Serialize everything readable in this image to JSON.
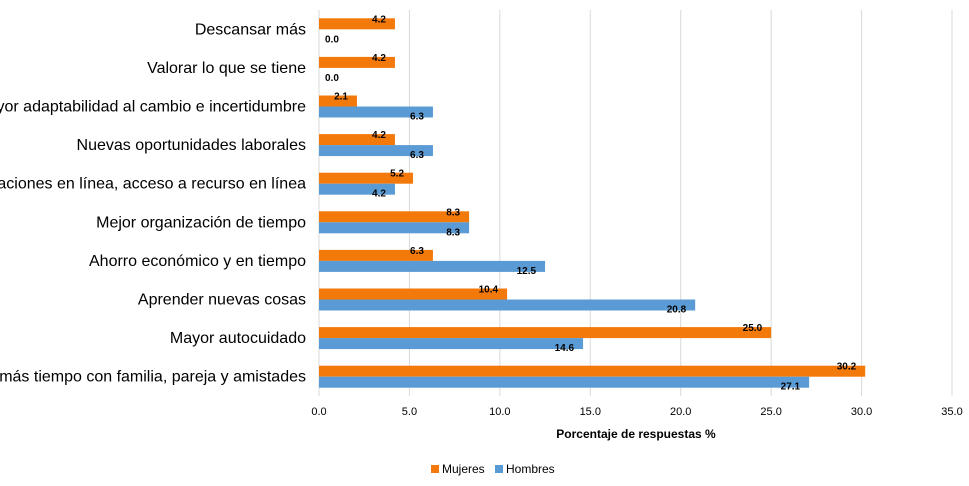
{
  "chart_data": {
    "type": "bar",
    "orientation": "horizontal",
    "categories": [
      "Descansar más",
      "Valorar lo que se tiene",
      "Mayor adaptabilidad al cambio e incertidumbre",
      "Nuevas oportunidades laborales",
      "Capacitaciones en línea, acceso a recurso en línea",
      "Mejor organización de tiempo",
      "Ahorro económico y en tiempo",
      "Aprender nuevas cosas",
      "Mayor autocuidado",
      "Pasar más tiempo con familia, pareja y amistades"
    ],
    "series": [
      {
        "name": "Mujeres",
        "color": "#F4790B",
        "values": [
          4.2,
          4.2,
          2.1,
          4.2,
          5.2,
          8.3,
          6.3,
          10.4,
          25.0,
          30.2
        ]
      },
      {
        "name": "Hombres",
        "color": "#5B9BD5",
        "values": [
          0.0,
          0.0,
          6.3,
          6.3,
          4.2,
          8.3,
          12.5,
          20.8,
          14.6,
          27.1
        ]
      }
    ],
    "xlabel": "Porcentaje de respuestas %",
    "xlim": [
      0,
      35
    ],
    "xticks": [
      0.0,
      5.0,
      10.0,
      15.0,
      20.0,
      25.0,
      30.0,
      35.0
    ],
    "grid": true,
    "legend_position": "bottom"
  }
}
